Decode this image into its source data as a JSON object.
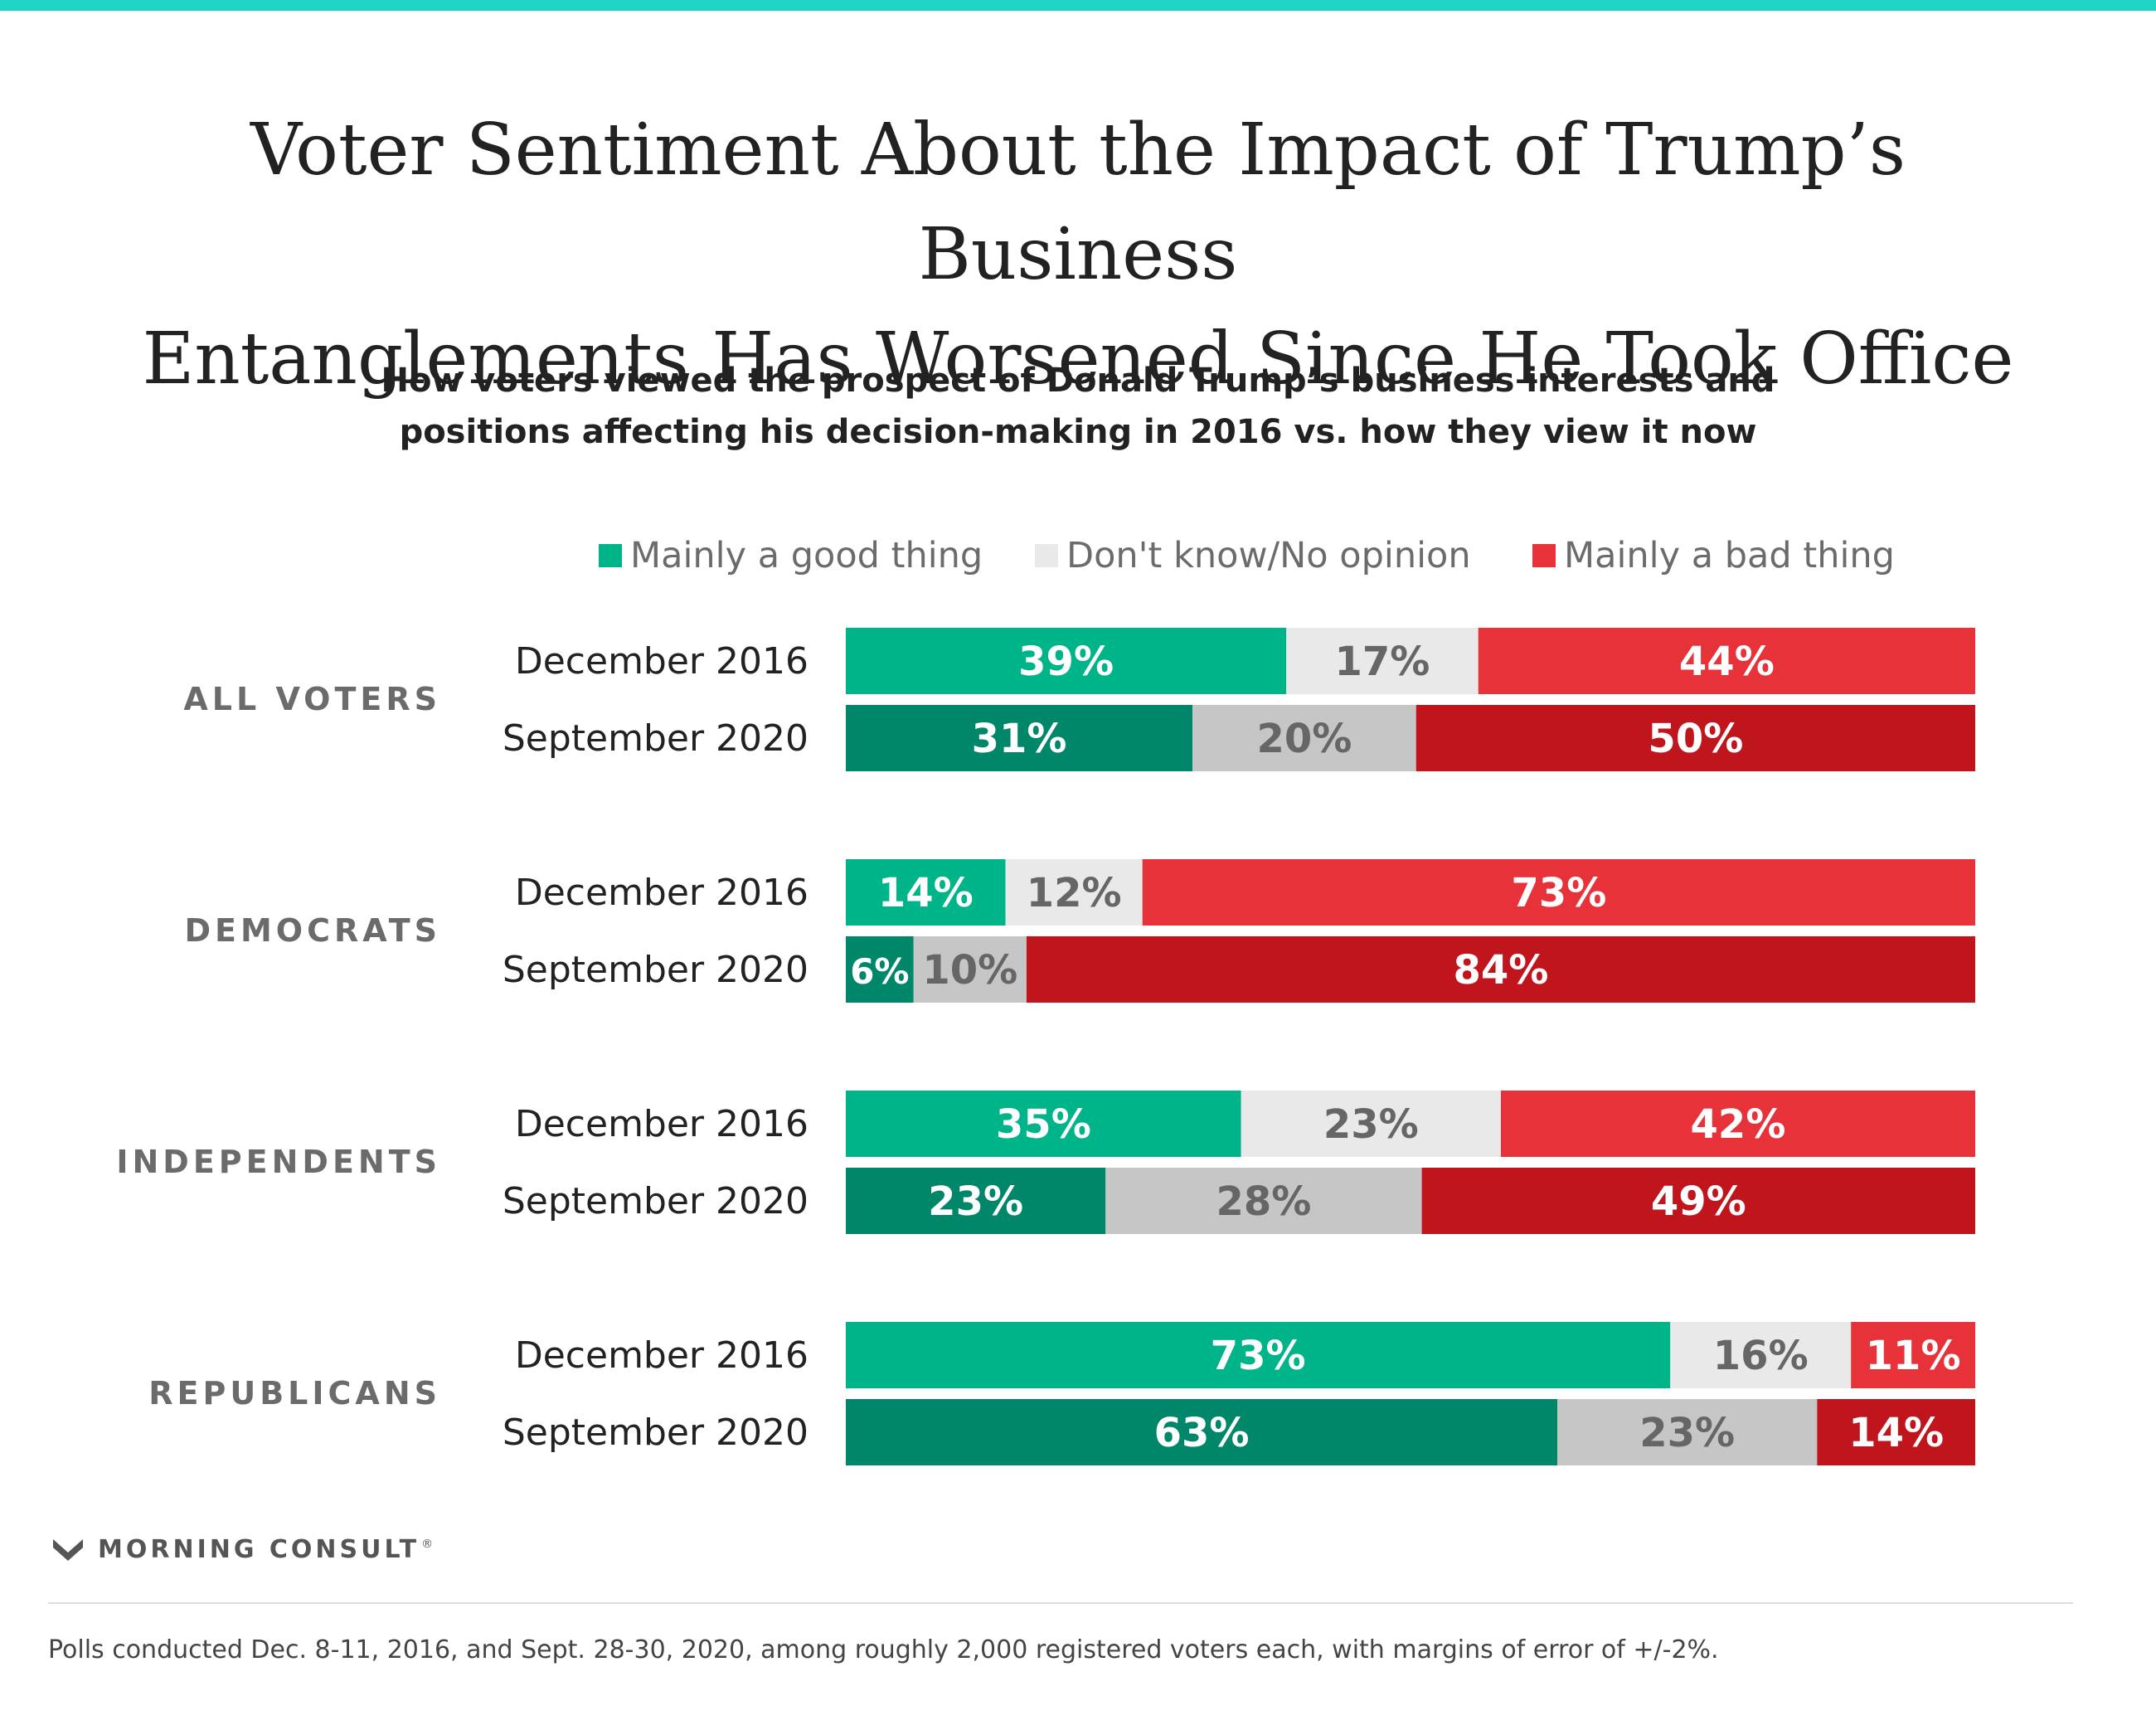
{
  "colors": {
    "top_bar": "#1fd4c5",
    "good_2016": "#00b48a",
    "good_2020": "#00876a",
    "neutral_2016": "#e9e9e9",
    "neutral_2020": "#c6c6c6",
    "bad_2016": "#e8323a",
    "bad_2020": "#c0151c",
    "neutral_text": "#666666",
    "group_label": "#6b6b6b"
  },
  "title_lines": [
    "Voter Sentiment About the Impact of Trump’s Business",
    "Entanglements Has Worsened Since He Took Office"
  ],
  "subtitle_lines": [
    "How voters viewed the prospect of Donald Trump’s business interests and",
    "positions affecting his decision-making in 2016 vs. how they view it now"
  ],
  "brand": {
    "name": "MORNING CONSULT",
    "mark": "®",
    "logo_icon": "morning-consult-m-logo"
  },
  "footnote": "Polls conducted Dec. 8-11, 2016, and Sept. 28-30, 2020, among roughly 2,000 registered voters each, with margins of error of +/-2%.",
  "chart_data": {
    "type": "bar",
    "orientation": "horizontal",
    "stacked": true,
    "percent_scale": true,
    "legend_position": "top",
    "legend": [
      "Mainly a good thing",
      "Don't know/No opinion",
      "Mainly a bad thing"
    ],
    "groups": [
      {
        "label": "ALL VOTERS",
        "rows": [
          {
            "label": "December 2016",
            "values": [
              39,
              17,
              44
            ],
            "labels": [
              "39%",
              "17%",
              "44%"
            ]
          },
          {
            "label": "September 2020",
            "values": [
              31,
              20,
              50
            ],
            "labels": [
              "31%",
              "20%",
              "50%"
            ]
          }
        ]
      },
      {
        "label": "DEMOCRATS",
        "rows": [
          {
            "label": "December 2016",
            "values": [
              14,
              12,
              73
            ],
            "labels": [
              "14%",
              "12%",
              "73%"
            ]
          },
          {
            "label": "September 2020",
            "values": [
              6,
              10,
              84
            ],
            "labels": [
              "6%",
              "10%",
              "84%"
            ]
          }
        ]
      },
      {
        "label": "INDEPENDENTS",
        "rows": [
          {
            "label": "December 2016",
            "values": [
              35,
              23,
              42
            ],
            "labels": [
              "35%",
              "23%",
              "42%"
            ]
          },
          {
            "label": "September 2020",
            "values": [
              23,
              28,
              49
            ],
            "labels": [
              "23%",
              "28%",
              "49%"
            ]
          }
        ]
      },
      {
        "label": "REPUBLICANS",
        "rows": [
          {
            "label": "December 2016",
            "values": [
              73,
              16,
              11
            ],
            "labels": [
              "73%",
              "16%",
              "11%"
            ]
          },
          {
            "label": "September 2020",
            "values": [
              63,
              23,
              14
            ],
            "labels": [
              "63%",
              "23%",
              "14%"
            ]
          }
        ]
      }
    ]
  }
}
